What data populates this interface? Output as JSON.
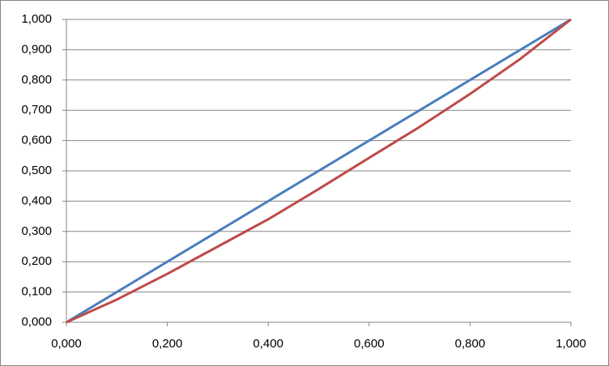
{
  "chart_data": {
    "type": "line",
    "series": [
      {
        "color": "#4a7ebb",
        "x": [
          0,
          1
        ],
        "values": [
          0,
          1
        ]
      },
      {
        "color": "#be4b48",
        "x": [
          0,
          0.1,
          0.2,
          0.3,
          0.4,
          0.5,
          0.6,
          0.7,
          0.8,
          0.9,
          1
        ],
        "values": [
          0,
          0.075,
          0.16,
          0.25,
          0.34,
          0.44,
          0.543,
          0.645,
          0.754,
          0.87,
          1
        ]
      }
    ],
    "xlim": [
      0,
      1
    ],
    "xticks": [
      {
        "value": 0,
        "label": "0,000"
      },
      {
        "value": 0.2,
        "label": "0,200"
      },
      {
        "value": 0.4,
        "label": "0,400"
      },
      {
        "value": 0.6,
        "label": "0,600"
      },
      {
        "value": 0.8,
        "label": "0,800"
      },
      {
        "value": 1,
        "label": "1,000"
      }
    ],
    "ylim": [
      0,
      1
    ],
    "yticks": [
      {
        "value": 0,
        "label": "0,000"
      },
      {
        "value": 0.1,
        "label": "0,100"
      },
      {
        "value": 0.2,
        "label": "0,200"
      },
      {
        "value": 0.3,
        "label": "0,300"
      },
      {
        "value": 0.4,
        "label": "0,400"
      },
      {
        "value": 0.5,
        "label": "0,500"
      },
      {
        "value": 0.6,
        "label": "0,600"
      },
      {
        "value": 0.7,
        "label": "0,700"
      },
      {
        "value": 0.8,
        "label": "0,800"
      },
      {
        "value": 0.9,
        "label": "0,900"
      },
      {
        "value": 1,
        "label": "1,000"
      }
    ],
    "grid": true
  }
}
